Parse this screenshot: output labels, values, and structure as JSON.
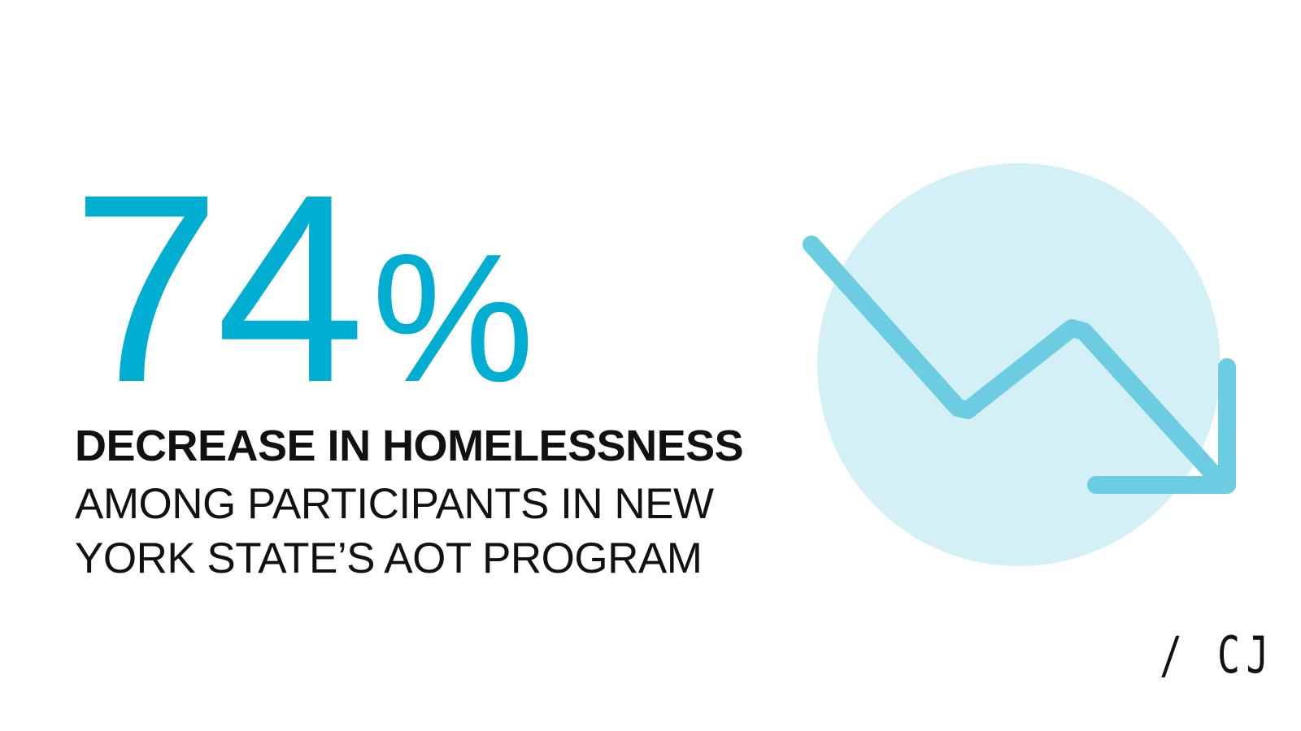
{
  "headline": {
    "number": "74",
    "unit": "%"
  },
  "lines": [
    "DECREASE IN HOMELESSNESS",
    "AMONG PARTICIPANTS IN NEW",
    "YORK STATE’S AOT PROGRAM"
  ],
  "logo": "/ CJ"
}
